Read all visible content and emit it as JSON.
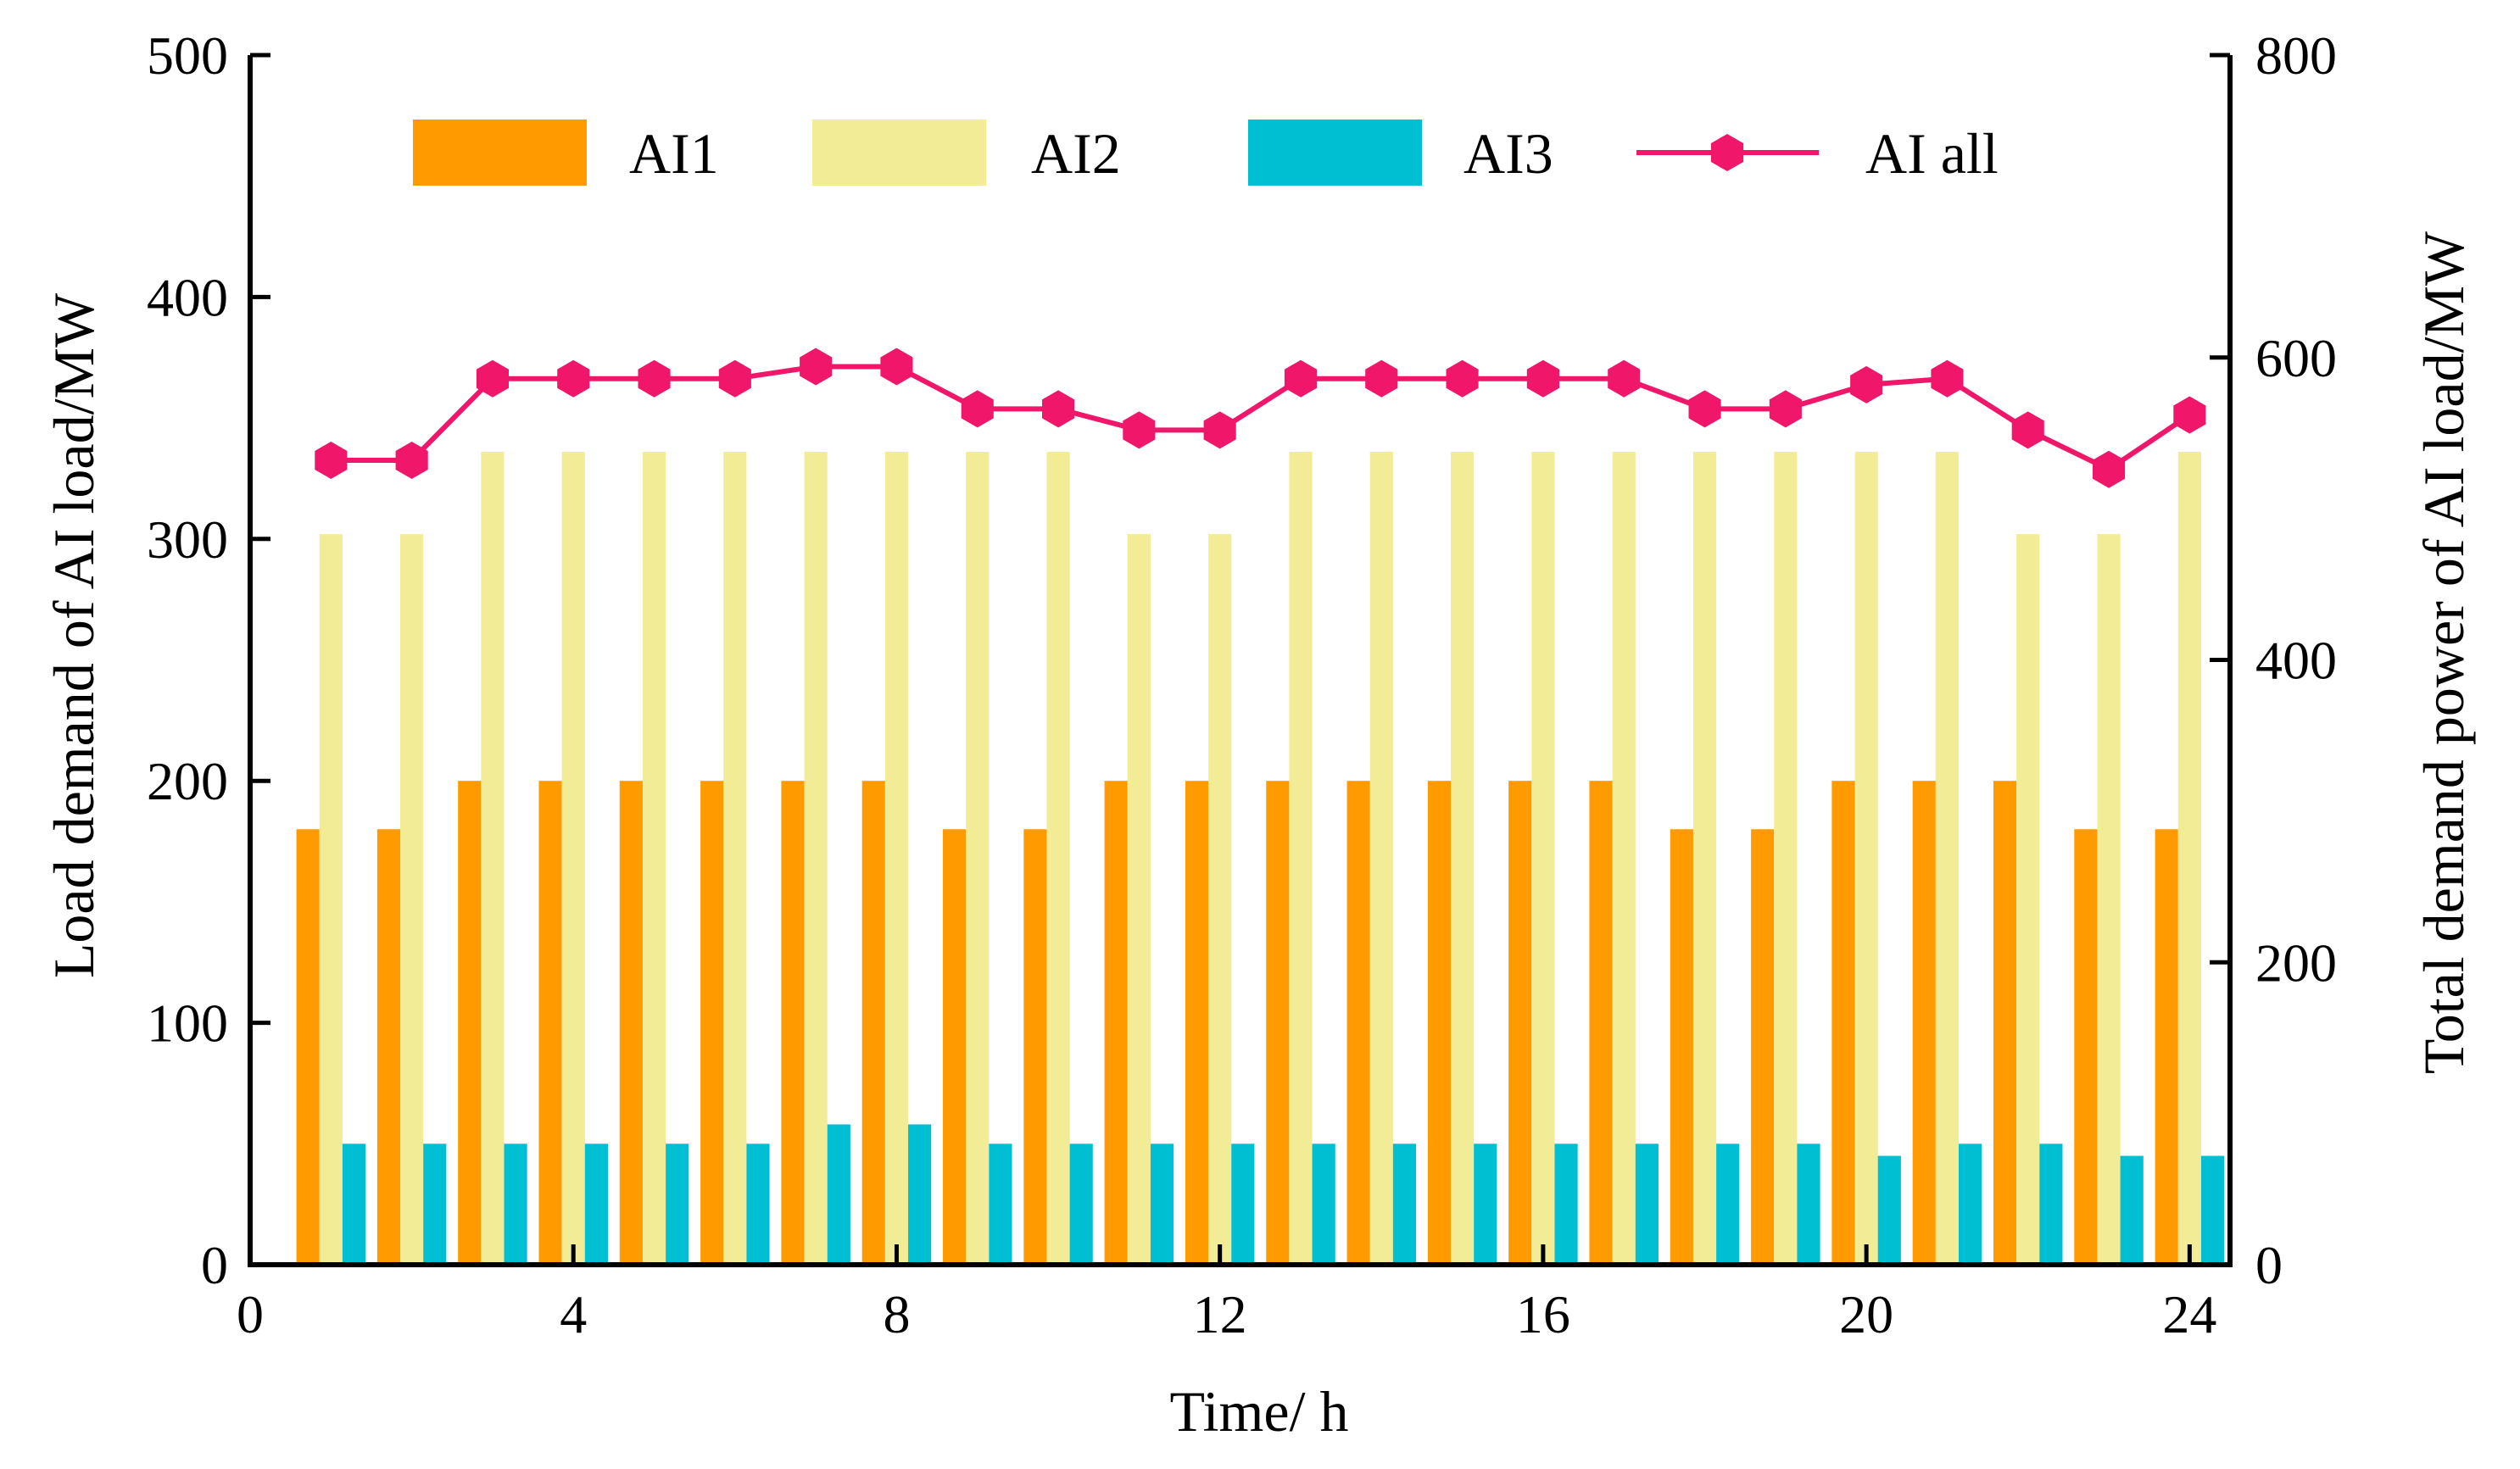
{
  "chart_data": {
    "type": "bar",
    "title": "",
    "xlabel": "Time/ h",
    "ylabel_left": "Load demand of AI load/MW",
    "ylabel_right": "Total demand power of AI load/MW",
    "xlim": [
      0,
      24.5
    ],
    "ylim_left": [
      0,
      500
    ],
    "ylim_right": [
      0,
      800
    ],
    "xticks": [
      0,
      4,
      8,
      12,
      16,
      20,
      24
    ],
    "yticks_left": [
      0,
      100,
      200,
      300,
      400,
      500
    ],
    "yticks_right": [
      0,
      200,
      400,
      600,
      800
    ],
    "x": [
      1,
      2,
      3,
      4,
      5,
      6,
      7,
      8,
      9,
      10,
      11,
      12,
      13,
      14,
      15,
      16,
      17,
      18,
      19,
      20,
      21,
      22,
      23,
      24
    ],
    "series": [
      {
        "name": "AI1",
        "kind": "bar",
        "axis": "left",
        "color": "#FF9A00",
        "values": [
          180,
          180,
          200,
          200,
          200,
          200,
          200,
          200,
          180,
          180,
          200,
          200,
          200,
          200,
          200,
          200,
          200,
          180,
          180,
          200,
          200,
          200,
          180,
          180
        ]
      },
      {
        "name": "AI2",
        "kind": "bar",
        "axis": "left",
        "color": "#F2EC96",
        "values": [
          302,
          302,
          336,
          336,
          336,
          336,
          336,
          336,
          336,
          336,
          302,
          302,
          336,
          336,
          336,
          336,
          336,
          336,
          336,
          336,
          336,
          302,
          302,
          336
        ]
      },
      {
        "name": "AI3",
        "kind": "bar",
        "axis": "left",
        "color": "#00BFD2",
        "values": [
          50,
          50,
          50,
          50,
          50,
          50,
          58,
          58,
          50,
          50,
          50,
          50,
          50,
          50,
          50,
          50,
          50,
          50,
          50,
          45,
          50,
          50,
          45,
          45
        ]
      },
      {
        "name": "AI all",
        "kind": "line",
        "axis": "right",
        "color": "#F0166A",
        "values": [
          532,
          532,
          586,
          586,
          586,
          586,
          594,
          594,
          566,
          566,
          552,
          552,
          586,
          586,
          586,
          586,
          586,
          566,
          566,
          582,
          586,
          552,
          526,
          562
        ]
      }
    ],
    "legend": {
      "position": "top",
      "entries": [
        "AI1",
        "AI2",
        "AI3",
        "AI all"
      ]
    },
    "grid": false
  }
}
